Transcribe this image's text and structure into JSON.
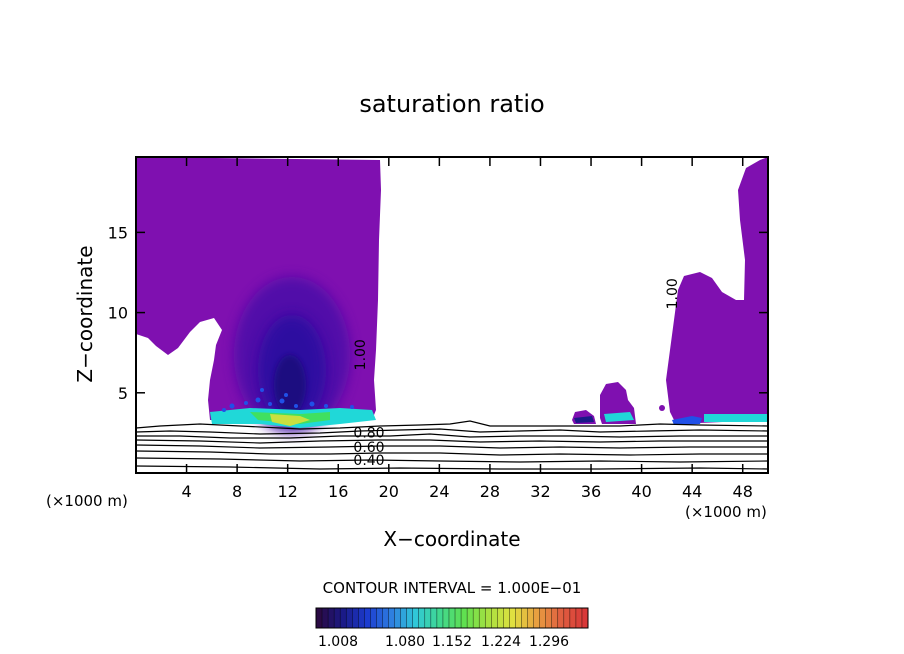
{
  "chart_data": {
    "type": "contour",
    "title": "saturation ratio",
    "xlabel": "X−coordinate",
    "ylabel": "Z−coordinate",
    "x_unit_left": "(×1000 m)",
    "x_unit_right": "(×1000 m)",
    "xlim": [
      0,
      50
    ],
    "ylim": [
      0,
      19.7
    ],
    "x_ticks": [
      4,
      8,
      12,
      16,
      20,
      24,
      28,
      32,
      36,
      40,
      44,
      48
    ],
    "y_ticks": [
      5,
      10,
      15
    ],
    "contour_interval_text": "CONTOUR INTERVAL = 1.000E−01",
    "contour_labels": [
      {
        "text": "1.00",
        "x": 18.1,
        "z": 6.4,
        "rotate": -90
      },
      {
        "text": "1.00",
        "x": 42.8,
        "z": 10.2,
        "rotate": -90
      },
      {
        "text": "0.80",
        "x": 17.2,
        "z": 2.2,
        "rotate": 0
      },
      {
        "text": "0.60",
        "x": 17.2,
        "z": 1.3,
        "rotate": 0
      },
      {
        "text": "0.40",
        "x": 17.2,
        "z": 0.5,
        "rotate": 0
      }
    ],
    "colorbar": {
      "ticks": [
        "1.008",
        "1.080",
        "1.152",
        "1.224",
        "1.296"
      ],
      "range": [
        1.0,
        1.33
      ],
      "colors": [
        "#2a0a44",
        "#1a1a88",
        "#1c3cd0",
        "#2e7fe0",
        "#30c8d8",
        "#40d890",
        "#60e050",
        "#a8e040",
        "#e0e040",
        "#e8a040",
        "#e06040",
        "#d83838"
      ]
    },
    "fill_colors": {
      "base": "#7f10b0",
      "deep": "#4810a8",
      "deeper": "#2a10a0",
      "core": "#1a1080",
      "cyan": "#20d8d8",
      "green": "#40e060",
      "yellow": "#c8e040",
      "blue": "#2050e8"
    }
  }
}
